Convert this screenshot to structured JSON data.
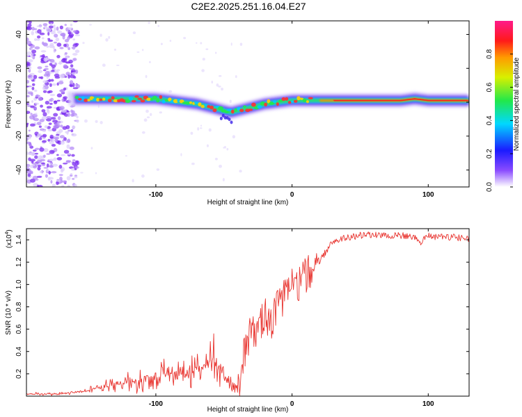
{
  "figure": {
    "title": "C2E2.2025.251.16.04.E27"
  },
  "chart_data": [
    {
      "type": "heatmap",
      "title": "C2E2.2025.251.16.04.E27",
      "xlabel": "Height of straight line (km)",
      "ylabel": "Frequency (Hz)",
      "xlim": [
        -195,
        130
      ],
      "ylim": [
        -50,
        48
      ],
      "xticks": [
        -100,
        0,
        100
      ],
      "yticks": [
        -40,
        -20,
        0,
        20,
        40
      ],
      "ridge_frequency": {
        "x": [
          -160,
          -150,
          -140,
          -130,
          -120,
          -110,
          -100,
          -90,
          -80,
          -70,
          -60,
          -50,
          -45,
          -40,
          -30,
          -20,
          -10,
          0,
          10,
          20,
          30,
          40,
          60,
          80,
          90,
          100,
          110,
          130
        ],
        "y": [
          2,
          2,
          2,
          2,
          2,
          2,
          2,
          1,
          0,
          -1,
          -3,
          -5,
          -6,
          -5,
          -3,
          -1,
          0,
          1,
          1,
          1,
          1,
          1,
          1,
          1,
          2,
          1,
          1,
          1
        ]
      },
      "colorbar": {
        "label": "Normalized spectral amplitude",
        "range": [
          0,
          1
        ],
        "ticks": [
          0.0,
          0.2,
          0.4,
          0.6,
          0.8
        ],
        "tick_labels": [
          "0.0",
          "0.2",
          "0.4",
          "0.6",
          "0.8"
        ]
      }
    },
    {
      "type": "line",
      "xlabel": "Height of straight line (km)",
      "ylabel": "SNR (10 * v/v)",
      "y_multiplier": "(x10",
      "y_multiplier_exp": "4",
      "y_multiplier_close": ")",
      "xlim": [
        -195,
        130
      ],
      "ylim": [
        0,
        1.5
      ],
      "xticks": [
        -100,
        0,
        100
      ],
      "yticks": [
        0.2,
        0.4,
        0.6,
        0.8,
        1.0,
        1.2,
        1.4
      ],
      "ytick_labels": [
        "0.2",
        "0.4",
        "0.6",
        "0.8",
        "1.0",
        "1.2",
        "1.4"
      ],
      "series": [
        {
          "name": "SNR",
          "color": "#e8332e",
          "x": [
            -195,
            -170,
            -150,
            -140,
            -130,
            -120,
            -110,
            -100,
            -90,
            -80,
            -70,
            -60,
            -55,
            -50,
            -45,
            -40,
            -38,
            -35,
            -30,
            -25,
            -20,
            -15,
            -10,
            -5,
            0,
            5,
            10,
            15,
            20,
            25,
            30,
            40,
            50,
            60,
            70,
            80,
            90,
            95,
            100,
            105,
            110,
            120,
            130
          ],
          "y": [
            0.02,
            0.02,
            0.05,
            0.07,
            0.1,
            0.12,
            0.15,
            0.18,
            0.2,
            0.22,
            0.25,
            0.3,
            0.35,
            0.15,
            0.1,
            0.08,
            0.05,
            0.4,
            0.6,
            0.55,
            0.7,
            0.65,
            0.8,
            0.9,
            0.95,
            1.0,
            1.05,
            1.1,
            1.2,
            1.3,
            1.38,
            1.42,
            1.44,
            1.45,
            1.44,
            1.44,
            1.42,
            1.38,
            1.45,
            1.42,
            1.43,
            1.42,
            1.41
          ]
        }
      ]
    }
  ]
}
